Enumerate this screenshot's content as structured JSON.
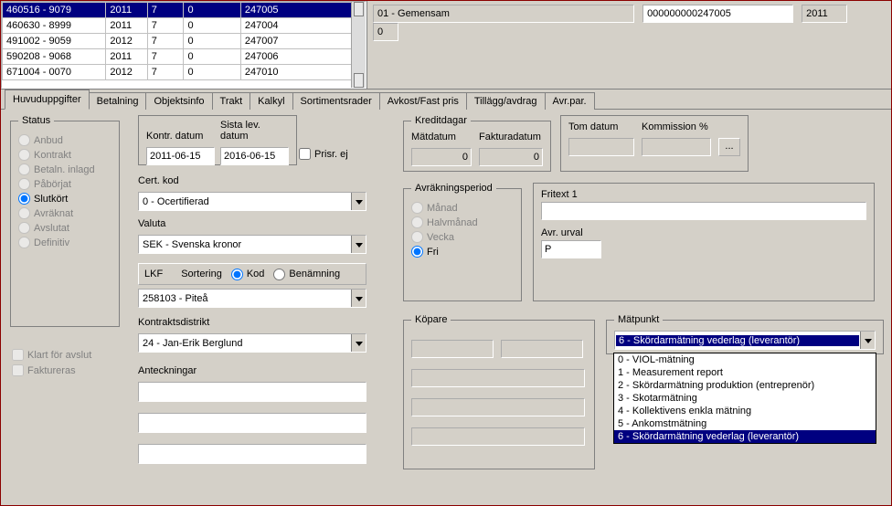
{
  "grid": {
    "rows": [
      [
        "460516 - 9079",
        "2011",
        "7",
        "0",
        "247005"
      ],
      [
        "460630 - 8999",
        "2011",
        "7",
        "0",
        "247004"
      ],
      [
        "491002 - 9059",
        "2012",
        "7",
        "0",
        "247007"
      ],
      [
        "590208 - 9068",
        "2011",
        "7",
        "0",
        "247006"
      ],
      [
        "671004 - 0070",
        "2012",
        "7",
        "0",
        "247010"
      ]
    ],
    "selected_index": 0
  },
  "header": {
    "gemensam": "01 - Gemensam",
    "num": "000000000247005",
    "year": "2011",
    "zero": "0"
  },
  "tabs": [
    "Huvuduppgifter",
    "Betalning",
    "Objektsinfo",
    "Trakt",
    "Kalkyl",
    "Sortimentsrader",
    "Avkost/Fast pris",
    "Tillägg/avdrag",
    "Avr.par."
  ],
  "active_tab": 0,
  "labels": {
    "status": "Status",
    "anbud": "Anbud",
    "kontrakt": "Kontrakt",
    "betaln_inlagd": "Betaln. inlagd",
    "paborjat": "Påbörjat",
    "slutkort": "Slutkört",
    "avraknat": "Avräknat",
    "avslutat": "Avslutat",
    "definitiv": "Definitiv",
    "klart_for_avslut": "Klart för avslut",
    "faktureras": "Faktureras",
    "kontr_datum": "Kontr. datum",
    "sista_lev_datum": "Sista lev. datum",
    "prisr_ej": "Prisr. ej",
    "cert_kod": "Cert. kod",
    "valuta": "Valuta",
    "lkf": "LKF",
    "sortering": "Sortering",
    "kod": "Kod",
    "benamning": "Benämning",
    "kontraktsdistrikt": "Kontraktsdistrikt",
    "anteckningar": "Anteckningar",
    "kreditdagar": "Kreditdagar",
    "matdatum": "Mätdatum",
    "fakturadatum": "Fakturadatum",
    "tom_datum": "Tom datum",
    "kommission": "Kommission %",
    "avrakningsperiod": "Avräkningsperiod",
    "manad": "Månad",
    "halvmanad": "Halvmånad",
    "vecka": "Vecka",
    "fri": "Fri",
    "fritext1": "Fritext 1",
    "avr_urval": "Avr. urval",
    "kopare": "Köpare",
    "matpunkt": "Mätpunkt",
    "btn_dots": "..."
  },
  "values": {
    "kontr_datum": "2011-06-15",
    "sista_lev_datum": "2016-06-15",
    "cert_kod": "0 - Ocertifierad",
    "valuta": "SEK - Svenska kronor",
    "lkf": "258103 - Piteå",
    "kontraktsdistrikt": "24 - Jan-Erik Berglund",
    "matdatum": "0",
    "fakturadatum": "0",
    "tom_datum": "",
    "kommission": "",
    "fritext1": "",
    "avr_urval": "P",
    "matpunkt_selected": "6 - Skördarmätning vederlag (leverantör)"
  },
  "matpunkt_options": [
    "0 - VIOL-mätning",
    "1 - Measurement report",
    "2 - Skördarmätning produktion (entreprenör)",
    "3 - Skotarmätning",
    "4 - Kollektivens enkla mätning",
    "5 - Ankomstmätning",
    "6 - Skördarmätning vederlag (leverantör)"
  ],
  "matpunkt_sel_index": 6,
  "colors": {
    "selection": "#000080",
    "panel": "#d4d0c8",
    "border_dark": "#808080"
  }
}
